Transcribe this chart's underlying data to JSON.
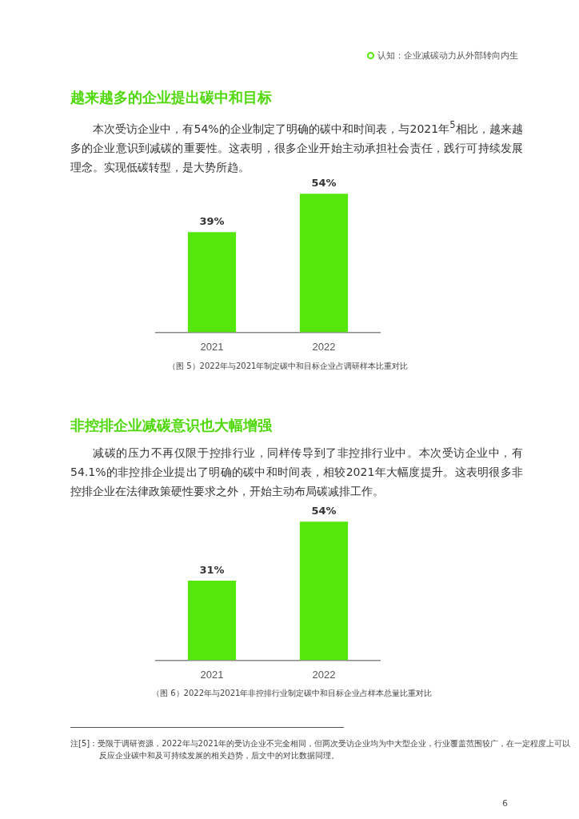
{
  "chart_data": [
    {
      "type": "bar",
      "title": "越来越多的企业提出碳中和目标",
      "subtitle": "本次受访企业中，有54%的企业制定了明确的碳中和时间表，与2021年$^{5}$相比，越来越多的企业意识到减碳的重要性。这表明，很多企业开始主动承担社会责任，践行可持续发展理念。实现低碳转型，是大势所趋。",
      "annotations": [
        "认知：企业减碳动力从外部转向内生",
        "（图 5）2022年与2021年制定碳中和目标企业占调研样本比重对比"
      ],
      "categories": [
        "2021",
        "2022"
      ],
      "values": [
        39,
        54
      ],
      "value_labels": [
        "39%",
        "54%"
      ],
      "color": "#55e60b",
      "grid": false,
      "legend": false,
      "tick_labels": "x"
    },
    {
      "type": "bar",
      "title": "非控排企业减碳意识也大幅增强",
      "subtitle": "减碳的压力不再仅限于控排行业，同样传导到了非控排行业中。本次受访企业中，有54.1%的非控排企业提出了明确的碳中和时间表，相较2021年大幅度提升。这表明很多非控排企业在法律政策硬性要求之外，开始主动布局碳减排工作。",
      "annotations": [
        "（图 6）2022年与2021年非控排行业制定碳中和目标企业占样本总量比重对比",
        "注[5]：受限于调研资源，2022年与2021年的受访企业不完全相同，但两次受访企业均为中大型企业，行业覆盖范围较广，在一定程度上可以反应企业碳中和及可持续发展的相关趋势，后文中的对比数据同理。",
        "6"
      ],
      "categories": [
        "2021",
        "2022"
      ],
      "values": [
        31,
        54
      ],
      "value_labels": [
        "31%",
        "54%"
      ],
      "color": "#55e60b",
      "grid": false,
      "legend": false,
      "tick_labels": "x"
    }
  ]
}
